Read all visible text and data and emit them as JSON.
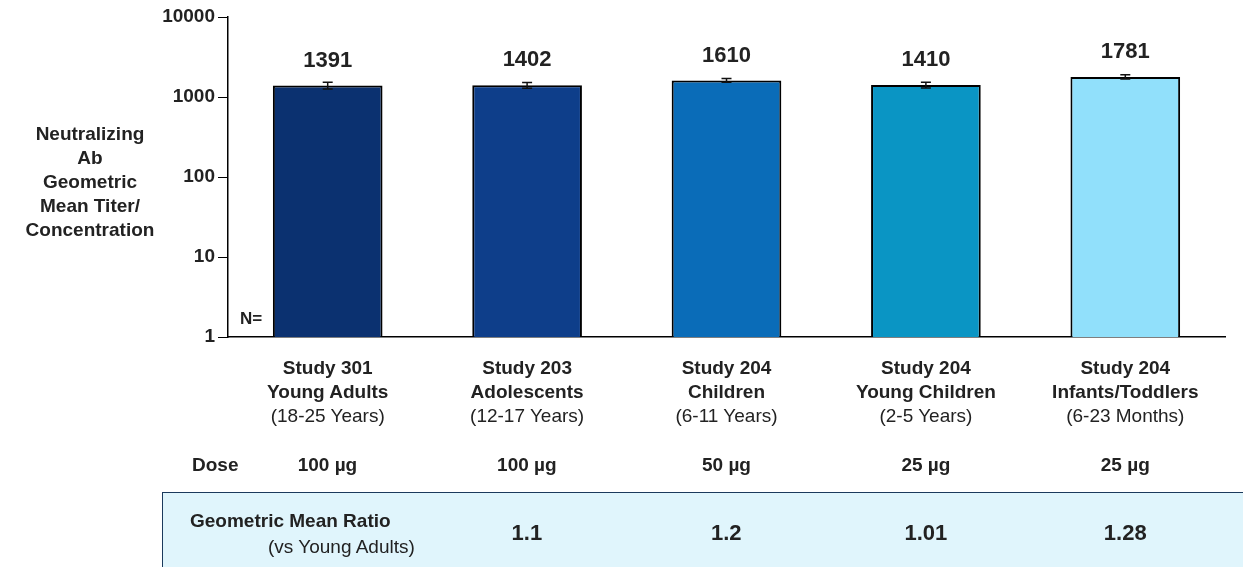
{
  "chart_data": {
    "type": "bar",
    "ylabel": "Neutralizing\nAb\nGeometric\nMean Titer/\nConcentration",
    "categories": [
      "Study 301\nYoung Adults\n(18-25 Years)",
      "Study 203\nAdolescents\n(12-17 Years)",
      "Study 204\nChildren\n(6-11 Years)",
      "Study 204\nYoung Children\n(2-5 Years)",
      "Study 204\nInfants/Toddlers\n(6-23 Months)"
    ],
    "values": [
      1391,
      1402,
      1610,
      1410,
      1781
    ],
    "colors": [
      "#0b3170",
      "#0e3e8a",
      "#0a6cb8",
      "#0a95c4",
      "#91e0fb"
    ],
    "errors": [
      [
        1263,
        1531
      ],
      [
        1291,
        1523
      ],
      [
        1525,
        1700
      ],
      [
        1300,
        1530
      ],
      [
        1677,
        1891
      ]
    ],
    "data_labels": true,
    "log": true,
    "ylim": [
      1,
      10000
    ],
    "yticks": [
      1,
      10,
      100,
      1000,
      10000
    ],
    "grid": false,
    "legend": false,
    "annotations": [
      "N=",
      "Dose",
      "100 µg",
      "100 µg",
      "50 µg",
      "25 µg",
      "25 µg",
      "Geometric Mean Ratio",
      "(vs Young Adults)",
      "1.1",
      "1.2",
      "1.01",
      "1.28"
    ]
  }
}
